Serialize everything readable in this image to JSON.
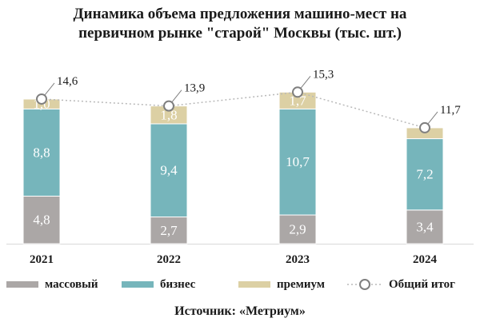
{
  "title_line1": "Динамика объема предложения машино-мест на",
  "title_line2": "первичном рынке \"старой\" Москвы (тыс. шт.)",
  "source": "Источник: «Метриум»",
  "colors": {
    "mass": "#aba7a6",
    "business": "#76b5bb",
    "premium": "#dcd0a4",
    "total_line": "#b9b9b9",
    "text": "#1a1a1a"
  },
  "chart_data": {
    "type": "bar",
    "stacked": true,
    "categories": [
      "2021",
      "2022",
      "2023",
      "2024"
    ],
    "series": [
      {
        "name": "массовый",
        "key": "mass",
        "values": [
          4.8,
          2.7,
          2.9,
          3.4
        ],
        "labels": [
          "4,8",
          "2,7",
          "2,9",
          "3,4"
        ]
      },
      {
        "name": "бизнес",
        "key": "business",
        "values": [
          8.8,
          9.4,
          10.7,
          7.2
        ],
        "labels": [
          "8,8",
          "9,4",
          "10,7",
          "7,2"
        ]
      },
      {
        "name": "премиум",
        "key": "premium",
        "values": [
          1.0,
          1.8,
          1.7,
          1.1
        ],
        "labels": [
          "1,0",
          "1,8",
          "1,7",
          ""
        ]
      }
    ],
    "total": {
      "name": "Общий итог",
      "values": [
        14.6,
        13.9,
        15.3,
        11.7
      ],
      "labels": [
        "14,6",
        "13,9",
        "15,3",
        "11,7"
      ]
    },
    "legend_position": "bottom",
    "grid": false,
    "ylim": [
      0,
      16
    ]
  }
}
